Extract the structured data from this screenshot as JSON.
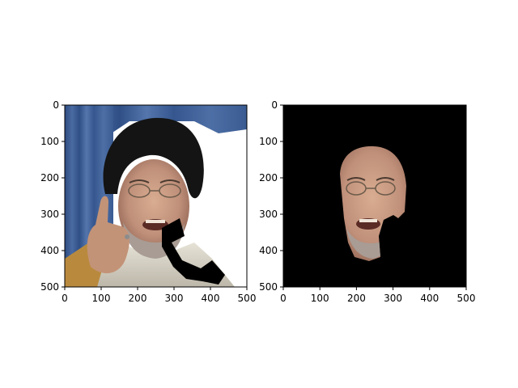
{
  "chart_data": [
    {
      "type": "image",
      "panel": "left",
      "content": "photo of a man wearing a black turban, gesturing with raised finger, speaking; blue curtain at top-left, white background at right; a black jagged stroke crosses the lower right",
      "xlim": [
        0,
        500
      ],
      "ylim": [
        500,
        0
      ],
      "xticks": [
        "0",
        "100",
        "200",
        "300",
        "400",
        "500"
      ],
      "yticks": [
        "0",
        "100",
        "200",
        "300",
        "400",
        "500"
      ]
    },
    {
      "type": "image",
      "panel": "right",
      "content": "segmentation-masked version of the same photo: only the face region is visible, everything else is black",
      "xlim": [
        0,
        500
      ],
      "ylim": [
        500,
        0
      ],
      "xticks": [
        "0",
        "100",
        "200",
        "300",
        "400",
        "500"
      ],
      "yticks": [
        "0",
        "100",
        "200",
        "300",
        "400",
        "500"
      ]
    }
  ],
  "colors": {
    "curtain": "#3b5a8f",
    "turban": "#141414",
    "skin": "#c89a7c",
    "robe": "#dcd8cc",
    "mask_bg": "#000000"
  }
}
